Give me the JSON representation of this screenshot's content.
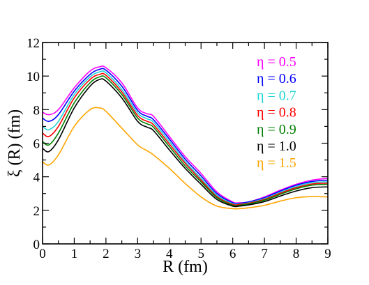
{
  "chart_data": {
    "type": "line",
    "title": "",
    "xlabel": "R (fm)",
    "ylabel": "ξ (R) (fm)",
    "xlim": [
      0,
      9
    ],
    "ylim": [
      0,
      12
    ],
    "xticks": [
      0,
      1,
      2,
      3,
      4,
      5,
      6,
      7,
      8,
      9
    ],
    "yticks": [
      0,
      2,
      4,
      6,
      8,
      10,
      12
    ],
    "xtick_labels": [
      "0",
      "1",
      "2",
      "3",
      "4",
      "5",
      "6",
      "7",
      "8",
      "9"
    ],
    "ytick_labels": [
      "0",
      "2",
      "4",
      "6",
      "8",
      "10",
      "12"
    ],
    "legend_position": "top-right",
    "grid": false,
    "x": [
      0,
      0.2,
      0.5,
      1.0,
      1.5,
      1.8,
      2.0,
      2.5,
      3.0,
      3.3,
      3.5,
      4.0,
      4.5,
      5.0,
      5.5,
      6.0,
      6.2,
      6.5,
      7.0,
      7.5,
      8.0,
      8.5,
      9.0
    ],
    "series": [
      {
        "name": "η = 0.5",
        "color": "#ff00ff",
        "values": [
          7.85,
          7.7,
          8.0,
          9.3,
          10.3,
          10.55,
          10.5,
          9.6,
          8.1,
          7.75,
          7.6,
          6.4,
          5.2,
          4.2,
          3.1,
          2.5,
          2.45,
          2.5,
          2.8,
          3.2,
          3.55,
          3.8,
          3.9
        ]
      },
      {
        "name": "η = 0.6",
        "color": "#0000ff",
        "values": [
          7.5,
          7.3,
          7.7,
          9.1,
          10.1,
          10.4,
          10.35,
          9.4,
          7.95,
          7.6,
          7.4,
          6.25,
          5.05,
          4.05,
          3.0,
          2.45,
          2.42,
          2.5,
          2.75,
          3.15,
          3.5,
          3.72,
          3.8
        ]
      },
      {
        "name": "η = 0.7",
        "color": "#22d4d4",
        "values": [
          7.0,
          6.8,
          7.3,
          8.9,
          9.95,
          10.25,
          10.2,
          9.2,
          7.8,
          7.45,
          7.25,
          6.1,
          4.9,
          3.9,
          2.9,
          2.4,
          2.38,
          2.45,
          2.7,
          3.08,
          3.42,
          3.65,
          3.7
        ]
      },
      {
        "name": "η = 0.8",
        "color": "#ff0000",
        "values": [
          6.6,
          6.4,
          7.0,
          8.7,
          9.8,
          10.1,
          10.05,
          9.05,
          7.65,
          7.3,
          7.1,
          5.95,
          4.8,
          3.8,
          2.82,
          2.35,
          2.35,
          2.42,
          2.65,
          3.02,
          3.35,
          3.57,
          3.62
        ]
      },
      {
        "name": "η = 0.9",
        "color": "#008000",
        "values": [
          6.1,
          5.9,
          6.6,
          8.4,
          9.6,
          9.95,
          9.9,
          8.9,
          7.5,
          7.15,
          6.95,
          5.8,
          4.65,
          3.7,
          2.75,
          2.3,
          2.3,
          2.38,
          2.6,
          2.95,
          3.28,
          3.5,
          3.55
        ]
      },
      {
        "name": "η = 1.0",
        "color": "#000000",
        "values": [
          5.7,
          5.5,
          6.2,
          8.1,
          9.4,
          9.8,
          9.7,
          8.7,
          7.3,
          6.95,
          6.75,
          5.6,
          4.5,
          3.55,
          2.65,
          2.25,
          2.25,
          2.32,
          2.52,
          2.85,
          3.15,
          3.35,
          3.4
        ]
      },
      {
        "name": "η = 1.5",
        "color": "#ffa500",
        "values": [
          4.9,
          4.7,
          5.3,
          7.0,
          8.0,
          8.1,
          7.9,
          6.9,
          5.9,
          5.55,
          5.3,
          4.5,
          3.6,
          2.8,
          2.25,
          2.1,
          2.1,
          2.15,
          2.3,
          2.55,
          2.75,
          2.82,
          2.8
        ]
      }
    ]
  }
}
